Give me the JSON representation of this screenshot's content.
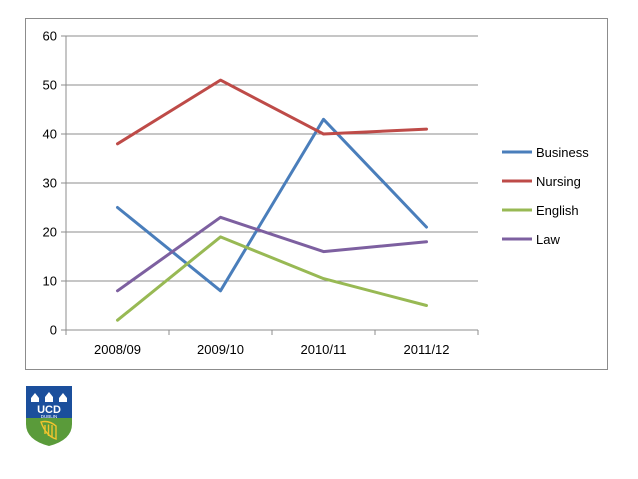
{
  "chart_data": {
    "type": "line",
    "categories": [
      "2008/09",
      "2009/10",
      "2010/11",
      "2011/12"
    ],
    "ylim": [
      0,
      60
    ],
    "yticks": [
      0,
      10,
      20,
      30,
      40,
      50,
      60
    ],
    "grid": true,
    "legend_position": "right",
    "series": [
      {
        "name": "Business",
        "color": "#4a7ebb",
        "values": [
          25,
          8,
          43,
          21
        ]
      },
      {
        "name": "Nursing",
        "color": "#be4b48",
        "values": [
          38,
          51,
          40,
          41
        ]
      },
      {
        "name": "English",
        "color": "#98b954",
        "values": [
          2,
          19,
          10.5,
          5
        ]
      },
      {
        "name": "Law",
        "color": "#7d60a0",
        "values": [
          8,
          23,
          16,
          18
        ]
      }
    ]
  },
  "logo": {
    "text": "UCD",
    "subtext": "DUBLIN",
    "icon": "ucd-crest-icon"
  }
}
